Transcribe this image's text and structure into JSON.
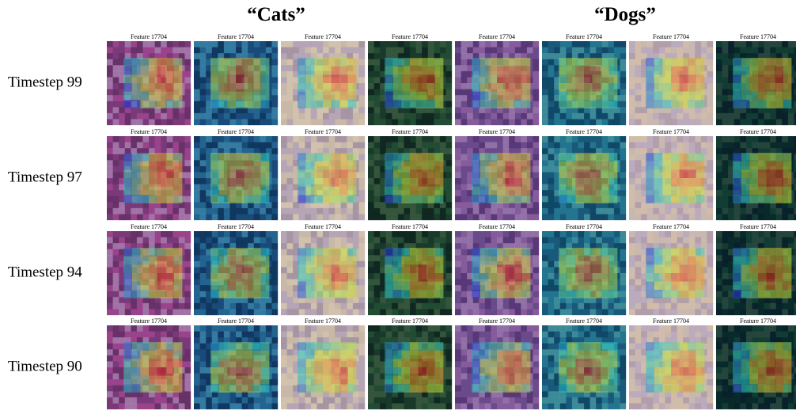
{
  "header": {
    "columns": [
      {
        "title": "“Cats”"
      },
      {
        "title": "“Dogs”"
      }
    ]
  },
  "rows": [
    {
      "label": "Timestep 99",
      "cells": [
        {
          "title": "Feature 17704"
        },
        {
          "title": "Feature 17704"
        },
        {
          "title": "Feature 17704"
        },
        {
          "title": "Feature 17704"
        },
        {
          "title": "Feature 17704"
        },
        {
          "title": "Feature 17704"
        },
        {
          "title": "Feature 17704"
        },
        {
          "title": "Feature 17704"
        }
      ]
    },
    {
      "label": "Timestep 97",
      "cells": [
        {
          "title": "Feature 17704"
        },
        {
          "title": "Feature 17704"
        },
        {
          "title": "Feature 17704"
        },
        {
          "title": "Feature 17704"
        },
        {
          "title": "Feature 17704"
        },
        {
          "title": "Feature 17704"
        },
        {
          "title": "Feature 17704"
        },
        {
          "title": "Feature 17704"
        }
      ]
    },
    {
      "label": "Timestep 94",
      "cells": [
        {
          "title": "Feature 17704"
        },
        {
          "title": "Feature 17704"
        },
        {
          "title": "Feature 17704"
        },
        {
          "title": "Feature 17704"
        },
        {
          "title": "Feature 17704"
        },
        {
          "title": "Feature 17704"
        },
        {
          "title": "Feature 17704"
        },
        {
          "title": "Feature 17704"
        }
      ]
    },
    {
      "label": "Timestep 90",
      "cells": [
        {
          "title": "Feature 17704"
        },
        {
          "title": "Feature 17704"
        },
        {
          "title": "Feature 17704"
        },
        {
          "title": "Feature 17704"
        },
        {
          "title": "Feature 17704"
        },
        {
          "title": "Feature 17704"
        },
        {
          "title": "Feature 17704"
        },
        {
          "title": "Feature 17704"
        }
      ]
    }
  ]
}
